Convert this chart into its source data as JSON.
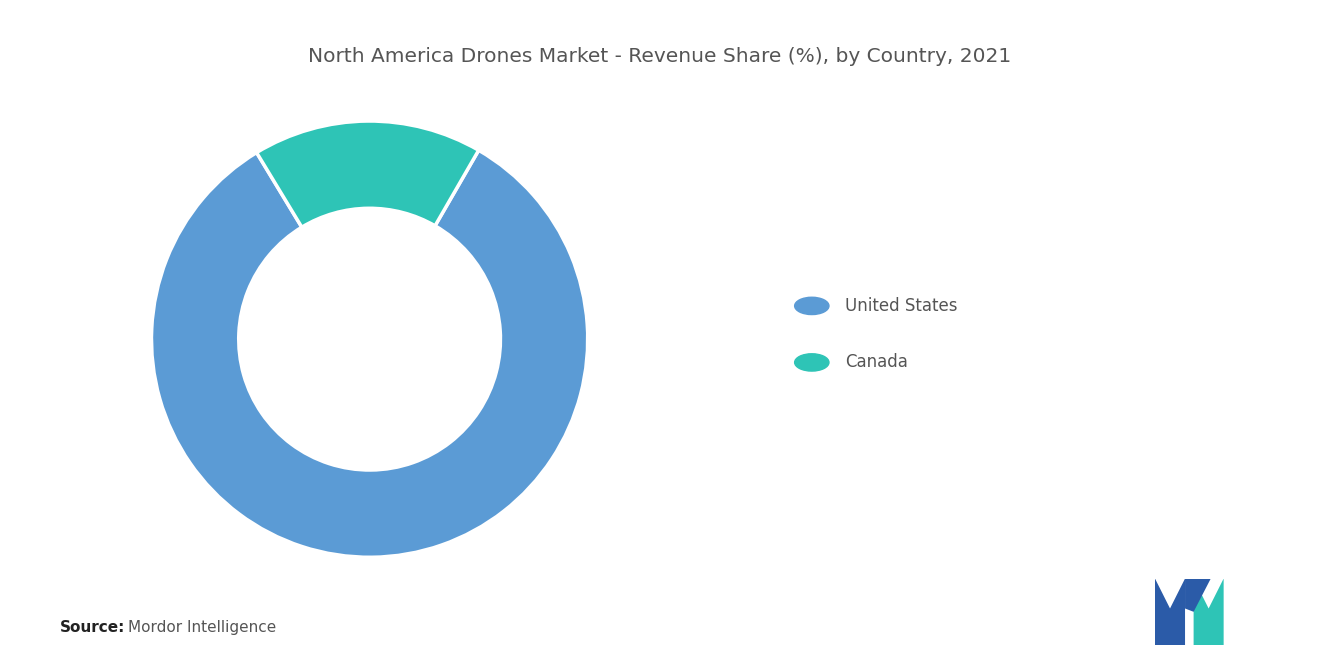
{
  "title": "North America Drones Market - Revenue Share (%), by Country, 2021",
  "title_fontsize": 14.5,
  "title_color": "#555555",
  "slices": [
    {
      "label": "United States",
      "value": 83,
      "color": "#5B9BD5"
    },
    {
      "label": "Canada",
      "value": 17,
      "color": "#2EC4B6"
    }
  ],
  "donut_width": 0.4,
  "background_color": "#FFFFFF",
  "legend_labels": [
    "United States",
    "Canada"
  ],
  "legend_colors": [
    "#5B9BD5",
    "#2EC4B6"
  ],
  "legend_dot_size": 120,
  "source_text": "Source:",
  "source_detail": "Mordor Intelligence",
  "source_fontsize": 11,
  "source_bold_color": "#222222",
  "source_normal_color": "#555555",
  "startangle": 90
}
